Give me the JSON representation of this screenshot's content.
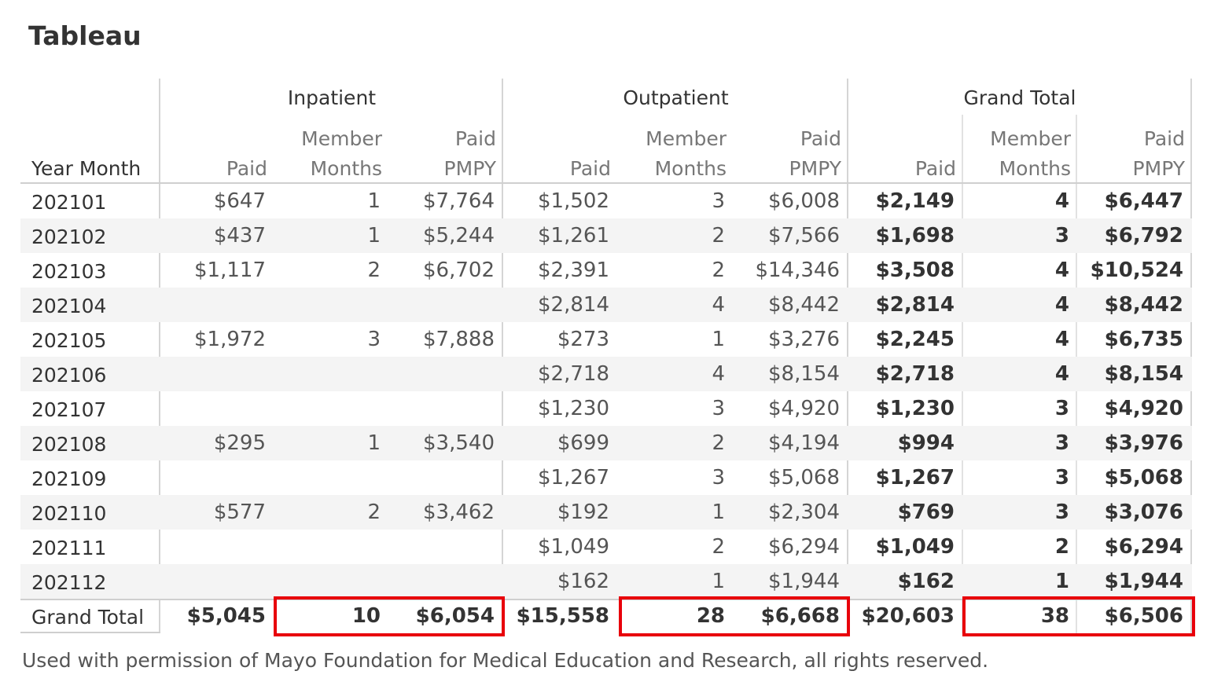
{
  "title": "Tableau",
  "groups": [
    "Inpatient",
    "Outpatient",
    "Grand Total"
  ],
  "row_header": "Year Month",
  "column_headers": [
    {
      "line1": "",
      "line2": "Paid"
    },
    {
      "line1": "Member",
      "line2": "Months"
    },
    {
      "line1": "Paid",
      "line2": "PMPY"
    }
  ],
  "rows": [
    {
      "ym": "202101",
      "ip_paid": "$647",
      "ip_mm": "1",
      "ip_pmpy": "$7,764",
      "op_paid": "$1,502",
      "op_mm": "3",
      "op_pmpy": "$6,008",
      "gt_paid": "$2,149",
      "gt_mm": "4",
      "gt_pmpy": "$6,447"
    },
    {
      "ym": "202102",
      "ip_paid": "$437",
      "ip_mm": "1",
      "ip_pmpy": "$5,244",
      "op_paid": "$1,261",
      "op_mm": "2",
      "op_pmpy": "$7,566",
      "gt_paid": "$1,698",
      "gt_mm": "3",
      "gt_pmpy": "$6,792"
    },
    {
      "ym": "202103",
      "ip_paid": "$1,117",
      "ip_mm": "2",
      "ip_pmpy": "$6,702",
      "op_paid": "$2,391",
      "op_mm": "2",
      "op_pmpy": "$14,346",
      "gt_paid": "$3,508",
      "gt_mm": "4",
      "gt_pmpy": "$10,524"
    },
    {
      "ym": "202104",
      "ip_paid": "",
      "ip_mm": "",
      "ip_pmpy": "",
      "op_paid": "$2,814",
      "op_mm": "4",
      "op_pmpy": "$8,442",
      "gt_paid": "$2,814",
      "gt_mm": "4",
      "gt_pmpy": "$8,442"
    },
    {
      "ym": "202105",
      "ip_paid": "$1,972",
      "ip_mm": "3",
      "ip_pmpy": "$7,888",
      "op_paid": "$273",
      "op_mm": "1",
      "op_pmpy": "$3,276",
      "gt_paid": "$2,245",
      "gt_mm": "4",
      "gt_pmpy": "$6,735"
    },
    {
      "ym": "202106",
      "ip_paid": "",
      "ip_mm": "",
      "ip_pmpy": "",
      "op_paid": "$2,718",
      "op_mm": "4",
      "op_pmpy": "$8,154",
      "gt_paid": "$2,718",
      "gt_mm": "4",
      "gt_pmpy": "$8,154"
    },
    {
      "ym": "202107",
      "ip_paid": "",
      "ip_mm": "",
      "ip_pmpy": "",
      "op_paid": "$1,230",
      "op_mm": "3",
      "op_pmpy": "$4,920",
      "gt_paid": "$1,230",
      "gt_mm": "3",
      "gt_pmpy": "$4,920"
    },
    {
      "ym": "202108",
      "ip_paid": "$295",
      "ip_mm": "1",
      "ip_pmpy": "$3,540",
      "op_paid": "$699",
      "op_mm": "2",
      "op_pmpy": "$4,194",
      "gt_paid": "$994",
      "gt_mm": "3",
      "gt_pmpy": "$3,976"
    },
    {
      "ym": "202109",
      "ip_paid": "",
      "ip_mm": "",
      "ip_pmpy": "",
      "op_paid": "$1,267",
      "op_mm": "3",
      "op_pmpy": "$5,068",
      "gt_paid": "$1,267",
      "gt_mm": "3",
      "gt_pmpy": "$5,068"
    },
    {
      "ym": "202110",
      "ip_paid": "$577",
      "ip_mm": "2",
      "ip_pmpy": "$3,462",
      "op_paid": "$192",
      "op_mm": "1",
      "op_pmpy": "$2,304",
      "gt_paid": "$769",
      "gt_mm": "3",
      "gt_pmpy": "$3,076"
    },
    {
      "ym": "202111",
      "ip_paid": "",
      "ip_mm": "",
      "ip_pmpy": "",
      "op_paid": "$1,049",
      "op_mm": "2",
      "op_pmpy": "$6,294",
      "gt_paid": "$1,049",
      "gt_mm": "2",
      "gt_pmpy": "$6,294"
    },
    {
      "ym": "202112",
      "ip_paid": "",
      "ip_mm": "",
      "ip_pmpy": "",
      "op_paid": "$162",
      "op_mm": "1",
      "op_pmpy": "$1,944",
      "gt_paid": "$162",
      "gt_mm": "1",
      "gt_pmpy": "$1,944"
    }
  ],
  "grand_total": {
    "ym": "Grand Total",
    "ip_paid": "$5,045",
    "ip_mm": "10",
    "ip_pmpy": "$6,054",
    "op_paid": "$15,558",
    "op_mm": "28",
    "op_pmpy": "$6,668",
    "gt_paid": "$20,603",
    "gt_mm": "38",
    "gt_pmpy": "$6,506"
  },
  "highlight_color": "#e8000b",
  "footer": "Used with permission of Mayo Foundation for Medical Education and Research, all rights reserved."
}
